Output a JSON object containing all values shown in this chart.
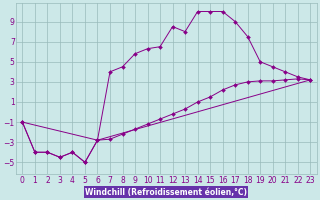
{
  "xlabel": "Windchill (Refroidissement éolien,°C)",
  "bg_color": "#cce8e8",
  "xlabel_bg": "#6633aa",
  "line_color": "#880088",
  "grid_color": "#99bbbb",
  "spine_color": "#99bbbb",
  "xlim": [
    -0.5,
    23.5
  ],
  "ylim": [
    -6.2,
    10.8
  ],
  "xticks": [
    0,
    1,
    2,
    3,
    4,
    5,
    6,
    7,
    8,
    9,
    10,
    11,
    12,
    13,
    14,
    15,
    16,
    17,
    18,
    19,
    20,
    21,
    22,
    23
  ],
  "yticks": [
    -5,
    -3,
    -1,
    1,
    3,
    5,
    7,
    9
  ],
  "series1_x": [
    0,
    1,
    2,
    3,
    4,
    5,
    6,
    7,
    8,
    9,
    10,
    11,
    12,
    13,
    14,
    15,
    16,
    17,
    18,
    19,
    20,
    21,
    22,
    23
  ],
  "series1_y": [
    -1,
    -4,
    -4,
    -4.5,
    -4,
    -5,
    -2.8,
    4,
    4.5,
    5.8,
    6.3,
    6.5,
    8.5,
    8,
    10,
    10,
    10,
    9,
    7.5,
    5,
    4.5,
    4,
    3.5,
    3.2
  ],
  "series2_x": [
    0,
    1,
    2,
    3,
    4,
    5,
    6,
    7,
    8,
    9,
    10,
    11,
    12,
    13,
    14,
    15,
    16,
    17,
    18,
    19,
    20,
    21,
    22,
    23
  ],
  "series2_y": [
    -1,
    -4,
    -4,
    -4.5,
    -4,
    -5,
    -2.8,
    -2.7,
    -2.2,
    -1.7,
    -1.2,
    -0.7,
    -0.2,
    0.3,
    1.0,
    1.5,
    2.2,
    2.7,
    3.0,
    3.1,
    3.1,
    3.2,
    3.3,
    3.2
  ],
  "series3_x": [
    0,
    6,
    23
  ],
  "series3_y": [
    -1,
    -2.8,
    3.2
  ],
  "tick_fontsize": 5.5,
  "xlabel_fontsize": 5.5
}
